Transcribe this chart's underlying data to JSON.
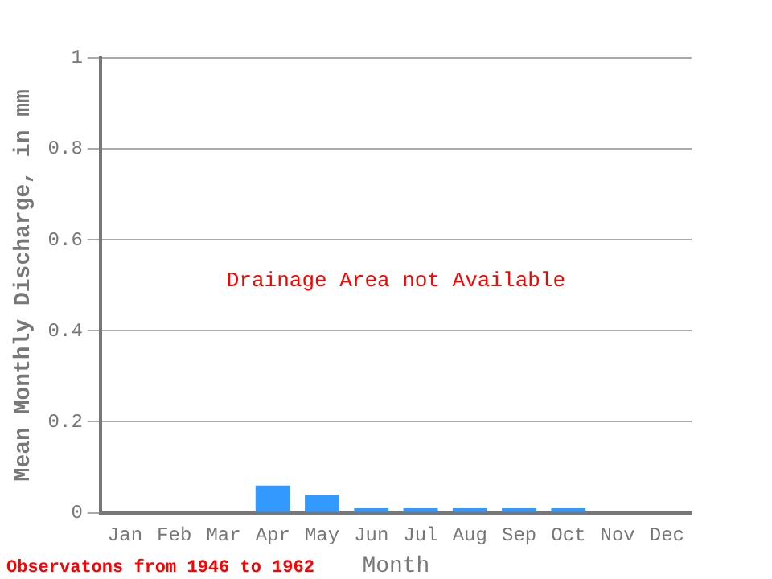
{
  "chart_data": {
    "type": "bar",
    "xlabel": "Month",
    "ylabel": "Mean Monthly Discharge, in mm",
    "categories": [
      "Jan",
      "Feb",
      "Mar",
      "Apr",
      "May",
      "Jun",
      "Jul",
      "Aug",
      "Sep",
      "Oct",
      "Nov",
      "Dec"
    ],
    "values": [
      0,
      0,
      0,
      0.06,
      0.04,
      0.01,
      0.01,
      0.01,
      0.01,
      0.01,
      0,
      0
    ],
    "color": "#3399ff",
    "ylim": [
      0,
      1
    ],
    "yticks": [
      0,
      0.2,
      0.4,
      0.6,
      0.8,
      1
    ],
    "grid": "y",
    "annotations": [
      "Drainage Area not Available",
      "Observatons from 1946 to 1962"
    ]
  }
}
